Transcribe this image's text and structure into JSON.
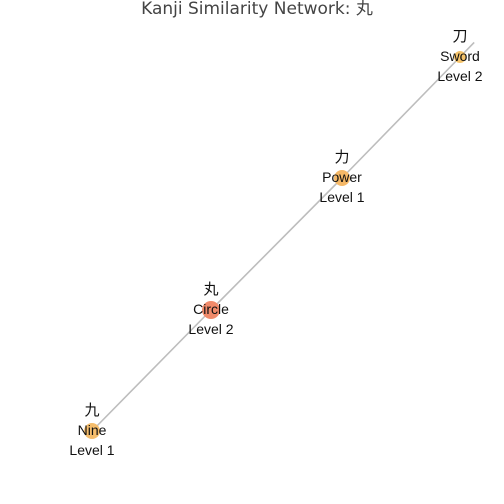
{
  "title": "Kanji Similarity Network: 丸",
  "nodes": [
    {
      "id": "sword",
      "kanji": "刀",
      "meaning": "Sword",
      "level": "Level 2",
      "color": "#f5c36b"
    },
    {
      "id": "power",
      "kanji": "力",
      "meaning": "Power",
      "level": "Level 1",
      "color": "#f5b867"
    },
    {
      "id": "circle",
      "kanji": "丸",
      "meaning": "Circle",
      "level": "Level 2",
      "color": "#f08a6a"
    },
    {
      "id": "nine",
      "kanji": "九",
      "meaning": "Nine",
      "level": "Level 1",
      "color": "#f5bd6c"
    }
  ],
  "edges": [
    {
      "from": "nine",
      "to": "circle"
    },
    {
      "from": "circle",
      "to": "power"
    },
    {
      "from": "power",
      "to": "sword"
    }
  ],
  "edge_color": "#bdbdbd"
}
